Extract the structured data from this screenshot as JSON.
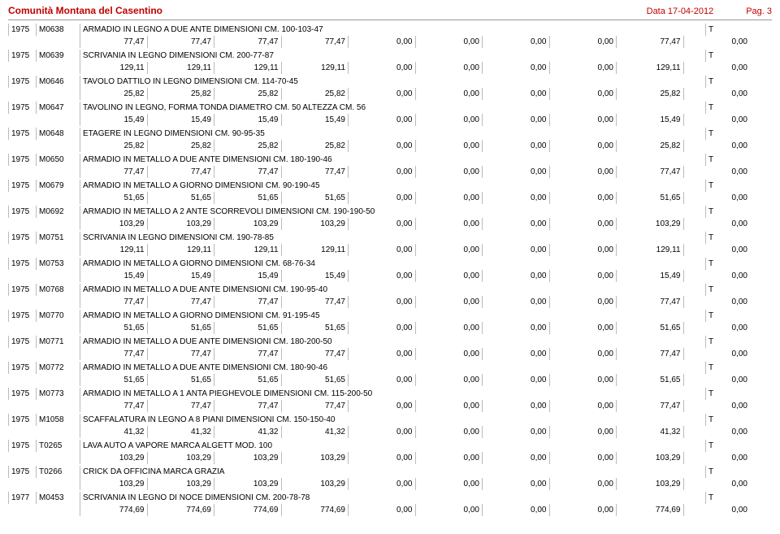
{
  "header": {
    "title": "Comunità Montana del Casentino",
    "date_label": "",
    "date_text": "Data   17-04-2012",
    "page_text": "Pag.   3"
  },
  "items": [
    {
      "year": "1975",
      "code": "M0638",
      "desc": "ARMADIO IN LEGNO A DUE ANTE DIMENSIONI CM. 100-103-47",
      "t": "T",
      "v": [
        "77,47",
        "77,47",
        "77,47",
        "77,47",
        "0,00",
        "0,00",
        "0,00",
        "0,00",
        "77,47",
        "0,00"
      ]
    },
    {
      "year": "1975",
      "code": "M0639",
      "desc": "SCRIVANIA IN LEGNO DIMENSIONI CM. 200-77-87",
      "t": "T",
      "v": [
        "129,11",
        "129,11",
        "129,11",
        "129,11",
        "0,00",
        "0,00",
        "0,00",
        "0,00",
        "129,11",
        "0,00"
      ]
    },
    {
      "year": "1975",
      "code": "M0646",
      "desc": "TAVOLO DATTILO IN LEGNO DIMENSIONI CM. 114-70-45",
      "t": "T",
      "v": [
        "25,82",
        "25,82",
        "25,82",
        "25,82",
        "0,00",
        "0,00",
        "0,00",
        "0,00",
        "25,82",
        "0,00"
      ]
    },
    {
      "year": "1975",
      "code": "M0647",
      "desc": "TAVOLINO IN LEGNO, FORMA TONDA DIAMETRO CM. 50 ALTEZZA CM. 56",
      "t": "T",
      "v": [
        "15,49",
        "15,49",
        "15,49",
        "15,49",
        "0,00",
        "0,00",
        "0,00",
        "0,00",
        "15,49",
        "0,00"
      ]
    },
    {
      "year": "1975",
      "code": "M0648",
      "desc": "ETAGERE IN LEGNO DIMENSIONI CM. 90-95-35",
      "t": "T",
      "v": [
        "25,82",
        "25,82",
        "25,82",
        "25,82",
        "0,00",
        "0,00",
        "0,00",
        "0,00",
        "25,82",
        "0,00"
      ]
    },
    {
      "year": "1975",
      "code": "M0650",
      "desc": "ARMADIO IN METALLO A DUE ANTE DIMENSIONI CM. 180-190-46",
      "t": "T",
      "v": [
        "77,47",
        "77,47",
        "77,47",
        "77,47",
        "0,00",
        "0,00",
        "0,00",
        "0,00",
        "77,47",
        "0,00"
      ]
    },
    {
      "year": "1975",
      "code": "M0679",
      "desc": "ARMADIO IN METALLO A GIORNO DIMENSIONI CM. 90-190-45",
      "t": "T",
      "v": [
        "51,65",
        "51,65",
        "51,65",
        "51,65",
        "0,00",
        "0,00",
        "0,00",
        "0,00",
        "51,65",
        "0,00"
      ]
    },
    {
      "year": "1975",
      "code": "M0692",
      "desc": "ARMADIO IN METALLO A 2 ANTE SCORREVOLI DIMENSIONI CM. 190-190-50",
      "t": "T",
      "v": [
        "103,29",
        "103,29",
        "103,29",
        "103,29",
        "0,00",
        "0,00",
        "0,00",
        "0,00",
        "103,29",
        "0,00"
      ]
    },
    {
      "year": "1975",
      "code": "M0751",
      "desc": "SCRIVANIA IN LEGNO DIMENSIONI CM. 190-78-85",
      "t": "T",
      "v": [
        "129,11",
        "129,11",
        "129,11",
        "129,11",
        "0,00",
        "0,00",
        "0,00",
        "0,00",
        "129,11",
        "0,00"
      ]
    },
    {
      "year": "1975",
      "code": "M0753",
      "desc": "ARMADIO IN METALLO A GIORNO DIMENSIONI CM. 68-76-34",
      "t": "T",
      "v": [
        "15,49",
        "15,49",
        "15,49",
        "15,49",
        "0,00",
        "0,00",
        "0,00",
        "0,00",
        "15,49",
        "0,00"
      ]
    },
    {
      "year": "1975",
      "code": "M0768",
      "desc": "ARMADIO IN METALLO A DUE ANTE DIMENSIONI CM. 190-95-40",
      "t": "T",
      "v": [
        "77,47",
        "77,47",
        "77,47",
        "77,47",
        "0,00",
        "0,00",
        "0,00",
        "0,00",
        "77,47",
        "0,00"
      ]
    },
    {
      "year": "1975",
      "code": "M0770",
      "desc": "ARMADIO IN METALLO A GIORNO DIMENSIONI CM. 91-195-45",
      "t": "T",
      "v": [
        "51,65",
        "51,65",
        "51,65",
        "51,65",
        "0,00",
        "0,00",
        "0,00",
        "0,00",
        "51,65",
        "0,00"
      ]
    },
    {
      "year": "1975",
      "code": "M0771",
      "desc": "ARMADIO IN METALLO A DUE ANTE DIMENSIONI CM. 180-200-50",
      "t": "T",
      "v": [
        "77,47",
        "77,47",
        "77,47",
        "77,47",
        "0,00",
        "0,00",
        "0,00",
        "0,00",
        "77,47",
        "0,00"
      ]
    },
    {
      "year": "1975",
      "code": "M0772",
      "desc": "ARMADIO IN METALLO A DUE ANTE DIMENSIONI CM. 180-90-46",
      "t": "T",
      "v": [
        "51,65",
        "51,65",
        "51,65",
        "51,65",
        "0,00",
        "0,00",
        "0,00",
        "0,00",
        "51,65",
        "0,00"
      ]
    },
    {
      "year": "1975",
      "code": "M0773",
      "desc": "ARMADIO IN METALLO A 1 ANTA PIEGHEVOLE DIMENSIONI CM. 115-200-50",
      "t": "T",
      "v": [
        "77,47",
        "77,47",
        "77,47",
        "77,47",
        "0,00",
        "0,00",
        "0,00",
        "0,00",
        "77,47",
        "0,00"
      ]
    },
    {
      "year": "1975",
      "code": "M1058",
      "desc": "SCAFFALATURA IN LEGNO A 8 PIANI DIMENSIONI CM. 150-150-40",
      "t": "T",
      "v": [
        "41,32",
        "41,32",
        "41,32",
        "41,32",
        "0,00",
        "0,00",
        "0,00",
        "0,00",
        "41,32",
        "0,00"
      ]
    },
    {
      "year": "1975",
      "code": "T0265",
      "desc": "LAVA AUTO A VAPORE MARCA ALGETT MOD. 100",
      "t": "T",
      "v": [
        "103,29",
        "103,29",
        "103,29",
        "103,29",
        "0,00",
        "0,00",
        "0,00",
        "0,00",
        "103,29",
        "0,00"
      ]
    },
    {
      "year": "1975",
      "code": "T0266",
      "desc": "CRICK DA OFFICINA MARCA GRAZIA",
      "t": "T",
      "v": [
        "103,29",
        "103,29",
        "103,29",
        "103,29",
        "0,00",
        "0,00",
        "0,00",
        "0,00",
        "103,29",
        "0,00"
      ]
    },
    {
      "year": "1977",
      "code": "M0453",
      "desc": "SCRIVANIA IN LEGNO DI NOCE DIMENSIONI CM. 200-78-78",
      "t": "T",
      "v": [
        "774,69",
        "774,69",
        "774,69",
        "774,69",
        "0,00",
        "0,00",
        "0,00",
        "0,00",
        "774,69",
        "0,00"
      ]
    }
  ]
}
